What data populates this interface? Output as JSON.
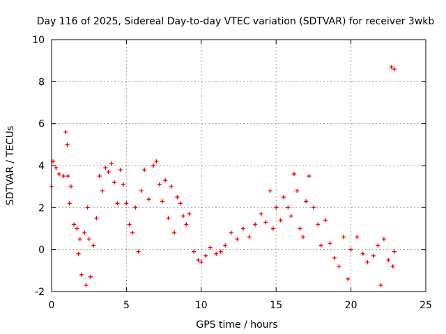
{
  "chart_data": {
    "type": "scatter",
    "title": "Day 116 of 2025, Sidereal Day-to-day VTEC variation (SDTVAR) for receiver 3wkb",
    "xlabel": "GPS time / hours",
    "ylabel": "SDTVAR / TECUs",
    "xlim": [
      0,
      25
    ],
    "ylim": [
      -2,
      10
    ],
    "xticks": [
      0,
      5,
      10,
      15,
      20,
      25
    ],
    "yticks": [
      -2,
      0,
      2,
      4,
      6,
      8,
      10
    ],
    "xtick_labels": [
      "0",
      "5",
      "10",
      "15",
      "20",
      "25"
    ],
    "ytick_labels": [
      "-2",
      "0",
      "2",
      "4",
      "6",
      "8",
      "10"
    ],
    "grid": true,
    "marker": "+",
    "series": [
      {
        "name": "SDTVAR",
        "color": "#ff0000",
        "points": [
          [
            0.0,
            3.0
          ],
          [
            0.1,
            4.2
          ],
          [
            0.3,
            3.9
          ],
          [
            0.5,
            3.6
          ],
          [
            0.8,
            3.5
          ],
          [
            0.95,
            5.6
          ],
          [
            1.05,
            5.0
          ],
          [
            1.1,
            3.5
          ],
          [
            1.2,
            2.2
          ],
          [
            1.3,
            3.0
          ],
          [
            1.5,
            1.2
          ],
          [
            1.7,
            1.0
          ],
          [
            1.8,
            -0.2
          ],
          [
            1.9,
            0.5
          ],
          [
            2.0,
            -1.2
          ],
          [
            2.2,
            0.8
          ],
          [
            2.3,
            -1.7
          ],
          [
            2.4,
            2.0
          ],
          [
            2.5,
            0.5
          ],
          [
            2.6,
            -1.3
          ],
          [
            2.8,
            0.2
          ],
          [
            3.0,
            1.5
          ],
          [
            3.2,
            3.5
          ],
          [
            3.4,
            2.8
          ],
          [
            3.6,
            3.9
          ],
          [
            3.8,
            3.7
          ],
          [
            4.0,
            4.1
          ],
          [
            4.2,
            3.2
          ],
          [
            4.4,
            2.2
          ],
          [
            4.6,
            3.8
          ],
          [
            4.8,
            3.1
          ],
          [
            5.0,
            2.2
          ],
          [
            5.2,
            1.2
          ],
          [
            5.4,
            0.8
          ],
          [
            5.6,
            2.0
          ],
          [
            5.8,
            -0.1
          ],
          [
            6.0,
            2.8
          ],
          [
            6.2,
            3.8
          ],
          [
            6.5,
            2.4
          ],
          [
            6.8,
            4.0
          ],
          [
            7.0,
            4.2
          ],
          [
            7.2,
            3.1
          ],
          [
            7.4,
            2.3
          ],
          [
            7.6,
            3.3
          ],
          [
            7.8,
            1.5
          ],
          [
            8.0,
            3.0
          ],
          [
            8.2,
            0.8
          ],
          [
            8.4,
            2.5
          ],
          [
            8.6,
            2.2
          ],
          [
            8.8,
            1.6
          ],
          [
            9.0,
            1.2
          ],
          [
            9.2,
            1.7
          ],
          [
            9.5,
            -0.1
          ],
          [
            9.8,
            -0.5
          ],
          [
            10.0,
            -0.6
          ],
          [
            10.3,
            -0.3
          ],
          [
            10.6,
            0.1
          ],
          [
            11.0,
            -0.2
          ],
          [
            11.3,
            -0.1
          ],
          [
            11.6,
            0.2
          ],
          [
            12.0,
            0.8
          ],
          [
            12.4,
            0.5
          ],
          [
            12.8,
            1.0
          ],
          [
            13.2,
            0.6
          ],
          [
            13.6,
            1.2
          ],
          [
            14.0,
            1.7
          ],
          [
            14.3,
            1.3
          ],
          [
            14.6,
            2.8
          ],
          [
            14.8,
            1.0
          ],
          [
            15.0,
            2.0
          ],
          [
            15.3,
            1.4
          ],
          [
            15.5,
            2.5
          ],
          [
            15.8,
            2.0
          ],
          [
            16.0,
            1.6
          ],
          [
            16.2,
            3.6
          ],
          [
            16.4,
            2.8
          ],
          [
            16.6,
            1.0
          ],
          [
            16.8,
            0.6
          ],
          [
            17.0,
            2.3
          ],
          [
            17.2,
            3.5
          ],
          [
            17.5,
            2.0
          ],
          [
            17.8,
            1.2
          ],
          [
            18.0,
            0.2
          ],
          [
            18.3,
            1.4
          ],
          [
            18.6,
            0.3
          ],
          [
            18.9,
            -0.4
          ],
          [
            19.2,
            -0.8
          ],
          [
            19.5,
            0.6
          ],
          [
            19.8,
            -1.4
          ],
          [
            20.0,
            0.0
          ],
          [
            20.4,
            0.6
          ],
          [
            20.8,
            -0.2
          ],
          [
            21.1,
            -0.6
          ],
          [
            21.5,
            -0.3
          ],
          [
            21.8,
            0.2
          ],
          [
            22.0,
            -1.7
          ],
          [
            22.2,
            0.5
          ],
          [
            22.5,
            -0.5
          ],
          [
            22.8,
            -0.8
          ],
          [
            22.9,
            -0.1
          ],
          [
            22.7,
            8.7
          ],
          [
            22.9,
            8.6
          ]
        ]
      }
    ]
  }
}
